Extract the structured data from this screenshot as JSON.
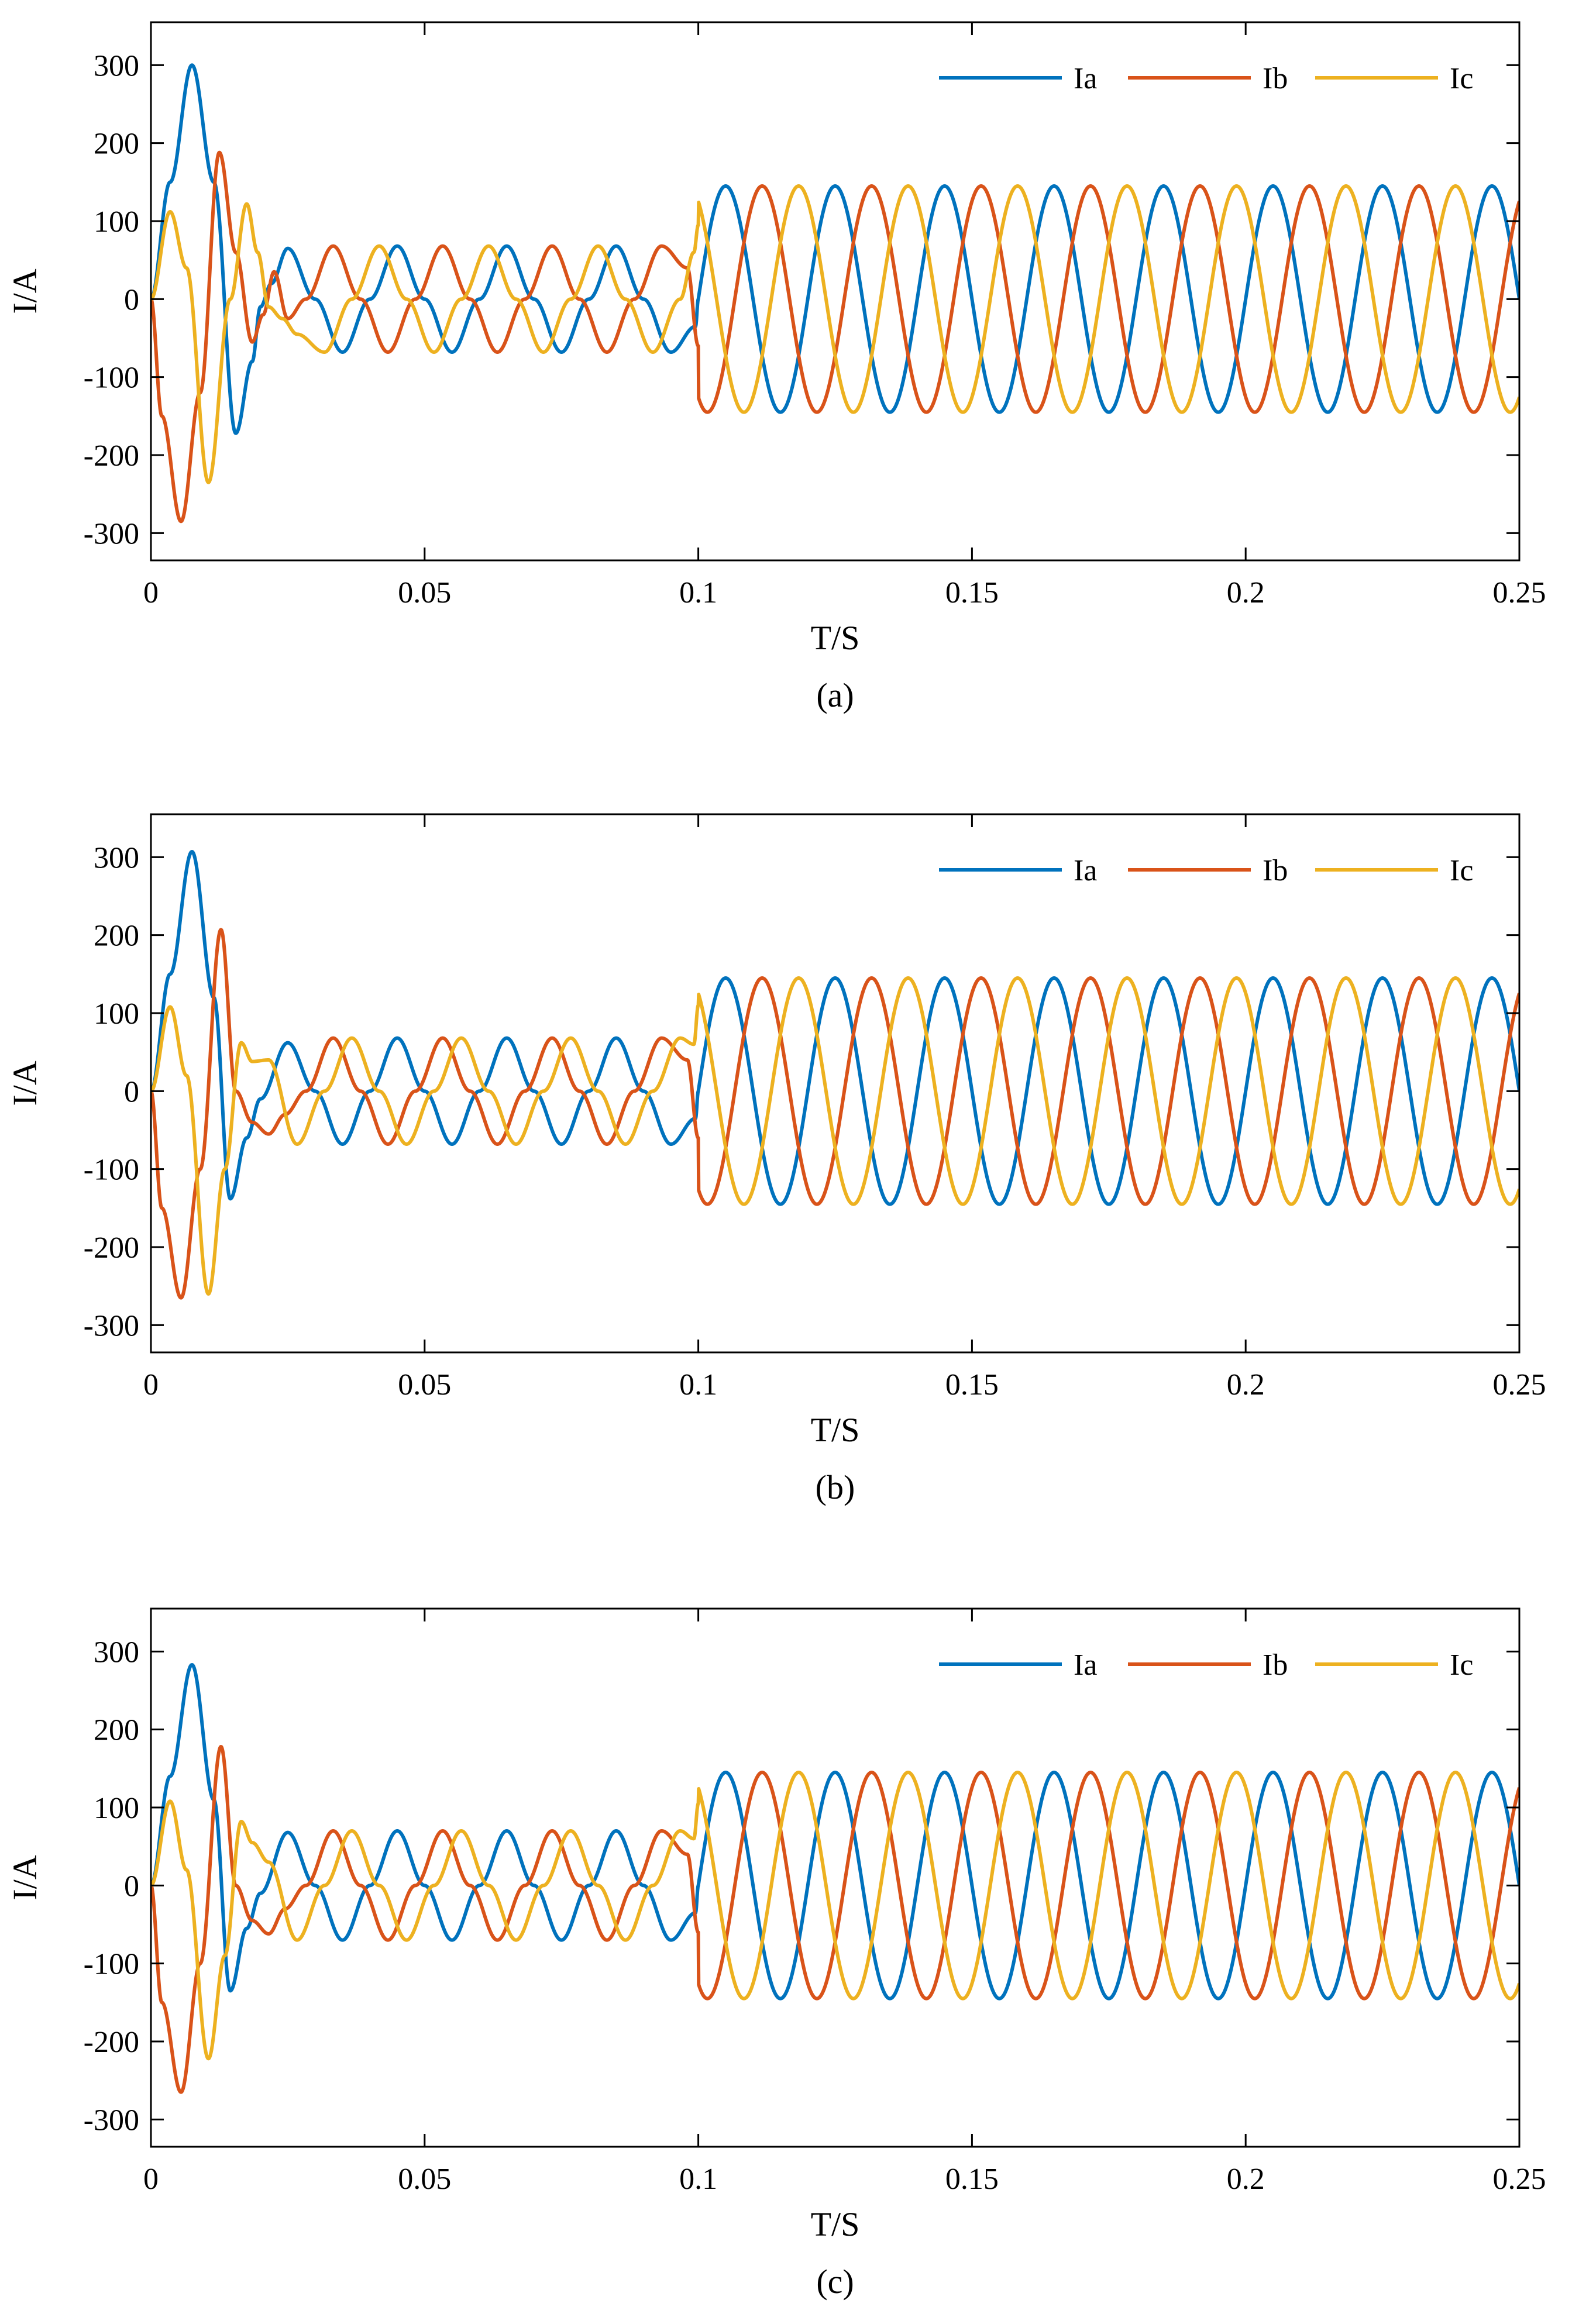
{
  "chart_data": [
    {
      "type": "line",
      "caption": "(a)",
      "xlabel": "T/S",
      "ylabel": "I/A",
      "xlim": [
        0,
        0.25
      ],
      "ylim": [
        -335,
        355
      ],
      "xticks": [
        0,
        0.05,
        0.1,
        0.15,
        0.2,
        0.25
      ],
      "xtick_labels": [
        "0",
        "0.05",
        "0.1",
        "0.15",
        "0.2",
        "0.25"
      ],
      "yticks": [
        -300,
        -200,
        -100,
        0,
        100,
        200,
        300
      ],
      "ytick_labels": [
        "-300",
        "-200",
        "-100",
        "0",
        "100",
        "200",
        "300"
      ],
      "grid": false,
      "legend_position": "top-right",
      "frequency_hz": 50,
      "series": [
        {
          "name": "Ia",
          "color": "#0072BD",
          "x": [
            0,
            0.0035,
            0.0075,
            0.0115,
            0.0155,
            0.0185,
            0.02,
            0.022,
            0.025,
            0.03,
            0.035,
            0.04,
            0.045,
            0.05,
            0.055,
            0.06,
            0.065,
            0.07,
            0.075,
            0.08,
            0.085,
            0.09,
            0.095,
            0.0995,
            0.1
          ],
          "y": [
            0,
            150,
            300,
            150,
            -172,
            -80,
            -10,
            20,
            65,
            0,
            -68,
            0,
            68,
            0,
            -68,
            0,
            68,
            0,
            -68,
            0,
            68,
            0,
            -68,
            -35,
            0
          ],
          "steady_amplitude": 145
        },
        {
          "name": "Ib",
          "color": "#D95319",
          "x": [
            0,
            0.002,
            0.0055,
            0.009,
            0.0125,
            0.0155,
            0.0185,
            0.0205,
            0.0225,
            0.025,
            0.0283,
            0.0333,
            0.0383,
            0.0433,
            0.0483,
            0.0533,
            0.0583,
            0.0633,
            0.0683,
            0.0733,
            0.0783,
            0.0833,
            0.0883,
            0.0933,
            0.098,
            0.1
          ],
          "y": [
            0,
            -150,
            -285,
            -120,
            188,
            60,
            -55,
            -20,
            35,
            -25,
            0,
            68,
            0,
            -68,
            0,
            68,
            0,
            -68,
            0,
            68,
            0,
            -68,
            0,
            68,
            40,
            -60
          ],
          "steady_amplitude": 145
        },
        {
          "name": "Ic",
          "color": "#EDB120",
          "x": [
            0,
            0.0035,
            0.0065,
            0.0105,
            0.0145,
            0.0175,
            0.0195,
            0.0215,
            0.024,
            0.0267,
            0.0317,
            0.0367,
            0.0417,
            0.0467,
            0.0517,
            0.0567,
            0.0617,
            0.0667,
            0.0717,
            0.0767,
            0.0817,
            0.0867,
            0.0917,
            0.0967,
            0.0992,
            0.1
          ],
          "y": [
            0,
            112,
            40,
            -235,
            0,
            122,
            60,
            -10,
            -25,
            -45,
            -68,
            0,
            68,
            0,
            -68,
            0,
            68,
            0,
            -68,
            0,
            68,
            0,
            -68,
            0,
            60,
            95
          ],
          "steady_amplitude": 145
        }
      ]
    },
    {
      "type": "line",
      "caption": "(b)",
      "xlabel": "T/S",
      "ylabel": "I/A",
      "xlim": [
        0,
        0.25
      ],
      "ylim": [
        -335,
        355
      ],
      "xticks": [
        0,
        0.05,
        0.1,
        0.15,
        0.2,
        0.25
      ],
      "xtick_labels": [
        "0",
        "0.05",
        "0.1",
        "0.15",
        "0.2",
        "0.25"
      ],
      "yticks": [
        -300,
        -200,
        -100,
        0,
        100,
        200,
        300
      ],
      "ytick_labels": [
        "-300",
        "-200",
        "-100",
        "0",
        "100",
        "200",
        "300"
      ],
      "grid": false,
      "legend_position": "top-right",
      "frequency_hz": 50,
      "series": [
        {
          "name": "Ia",
          "color": "#0072BD",
          "x": [
            0,
            0.0035,
            0.0075,
            0.0115,
            0.0145,
            0.0175,
            0.02,
            0.025,
            0.03,
            0.035,
            0.04,
            0.045,
            0.05,
            0.055,
            0.06,
            0.065,
            0.07,
            0.075,
            0.08,
            0.085,
            0.09,
            0.095,
            0.0995,
            0.1
          ],
          "y": [
            0,
            150,
            307,
            120,
            -138,
            -60,
            -10,
            62,
            0,
            -68,
            0,
            68,
            0,
            -68,
            0,
            68,
            0,
            -68,
            0,
            68,
            0,
            -68,
            -35,
            0
          ],
          "steady_amplitude": 145
        },
        {
          "name": "Ib",
          "color": "#D95319",
          "x": [
            0,
            0.002,
            0.0055,
            0.009,
            0.0128,
            0.0155,
            0.0185,
            0.0215,
            0.0245,
            0.0283,
            0.0333,
            0.0383,
            0.0433,
            0.0483,
            0.0533,
            0.0583,
            0.0633,
            0.0683,
            0.0733,
            0.0783,
            0.0833,
            0.0883,
            0.0933,
            0.098,
            0.1
          ],
          "y": [
            0,
            -150,
            -265,
            -100,
            207,
            0,
            -40,
            -55,
            -30,
            0,
            68,
            0,
            -68,
            0,
            68,
            0,
            -68,
            0,
            68,
            0,
            -68,
            0,
            68,
            40,
            -60
          ],
          "steady_amplitude": 145
        },
        {
          "name": "Ic",
          "color": "#EDB120",
          "x": [
            0,
            0.0035,
            0.0065,
            0.0105,
            0.0135,
            0.0165,
            0.0185,
            0.0215,
            0.0267,
            0.0317,
            0.0367,
            0.0417,
            0.0467,
            0.0517,
            0.0567,
            0.0617,
            0.0667,
            0.0717,
            0.0767,
            0.0817,
            0.0867,
            0.0917,
            0.0967,
            0.0992,
            0.1
          ],
          "y": [
            0,
            108,
            20,
            -260,
            -100,
            62,
            38,
            40,
            -68,
            0,
            68,
            0,
            -68,
            0,
            68,
            0,
            -68,
            0,
            68,
            0,
            -68,
            0,
            68,
            60,
            110
          ],
          "steady_amplitude": 145
        }
      ]
    },
    {
      "type": "line",
      "caption": "(c)",
      "xlabel": "T/S",
      "ylabel": "I/A",
      "xlim": [
        0,
        0.25
      ],
      "ylim": [
        -335,
        355
      ],
      "xticks": [
        0,
        0.05,
        0.1,
        0.15,
        0.2,
        0.25
      ],
      "xtick_labels": [
        "0",
        "0.05",
        "0.1",
        "0.15",
        "0.2",
        "0.25"
      ],
      "yticks": [
        -300,
        -200,
        -100,
        0,
        100,
        200,
        300
      ],
      "ytick_labels": [
        "-300",
        "-200",
        "-100",
        "0",
        "100",
        "200",
        "300"
      ],
      "grid": false,
      "legend_position": "top-right",
      "frequency_hz": 50,
      "series": [
        {
          "name": "Ia",
          "color": "#0072BD",
          "x": [
            0,
            0.0035,
            0.0075,
            0.0115,
            0.0145,
            0.0175,
            0.02,
            0.025,
            0.03,
            0.035,
            0.04,
            0.045,
            0.05,
            0.055,
            0.06,
            0.065,
            0.07,
            0.075,
            0.08,
            0.085,
            0.09,
            0.095,
            0.0995,
            0.1
          ],
          "y": [
            0,
            140,
            283,
            110,
            -135,
            -55,
            -10,
            68,
            0,
            -70,
            0,
            70,
            0,
            -70,
            0,
            70,
            0,
            -70,
            0,
            70,
            0,
            -70,
            -35,
            0
          ],
          "steady_amplitude": 145
        },
        {
          "name": "Ib",
          "color": "#D95319",
          "x": [
            0,
            0.002,
            0.0055,
            0.009,
            0.0128,
            0.0155,
            0.0185,
            0.0215,
            0.0245,
            0.0283,
            0.0333,
            0.0383,
            0.0433,
            0.0483,
            0.0533,
            0.0583,
            0.0633,
            0.0683,
            0.0733,
            0.0783,
            0.0833,
            0.0883,
            0.0933,
            0.098,
            0.1
          ],
          "y": [
            0,
            -150,
            -265,
            -100,
            178,
            0,
            -45,
            -62,
            -30,
            0,
            70,
            0,
            -70,
            0,
            70,
            0,
            -70,
            0,
            70,
            0,
            -70,
            0,
            70,
            40,
            -60
          ],
          "steady_amplitude": 145
        },
        {
          "name": "Ic",
          "color": "#EDB120",
          "x": [
            0,
            0.0035,
            0.0065,
            0.0105,
            0.0135,
            0.0165,
            0.0185,
            0.0215,
            0.0267,
            0.0317,
            0.0367,
            0.0417,
            0.0467,
            0.0517,
            0.0567,
            0.0617,
            0.0667,
            0.0717,
            0.0767,
            0.0817,
            0.0867,
            0.0917,
            0.0967,
            0.0992,
            0.1
          ],
          "y": [
            0,
            108,
            20,
            -222,
            -90,
            82,
            55,
            30,
            -70,
            0,
            70,
            0,
            -70,
            0,
            70,
            0,
            -70,
            0,
            70,
            0,
            -70,
            0,
            70,
            60,
            105
          ],
          "steady_amplitude": 145
        }
      ]
    }
  ]
}
